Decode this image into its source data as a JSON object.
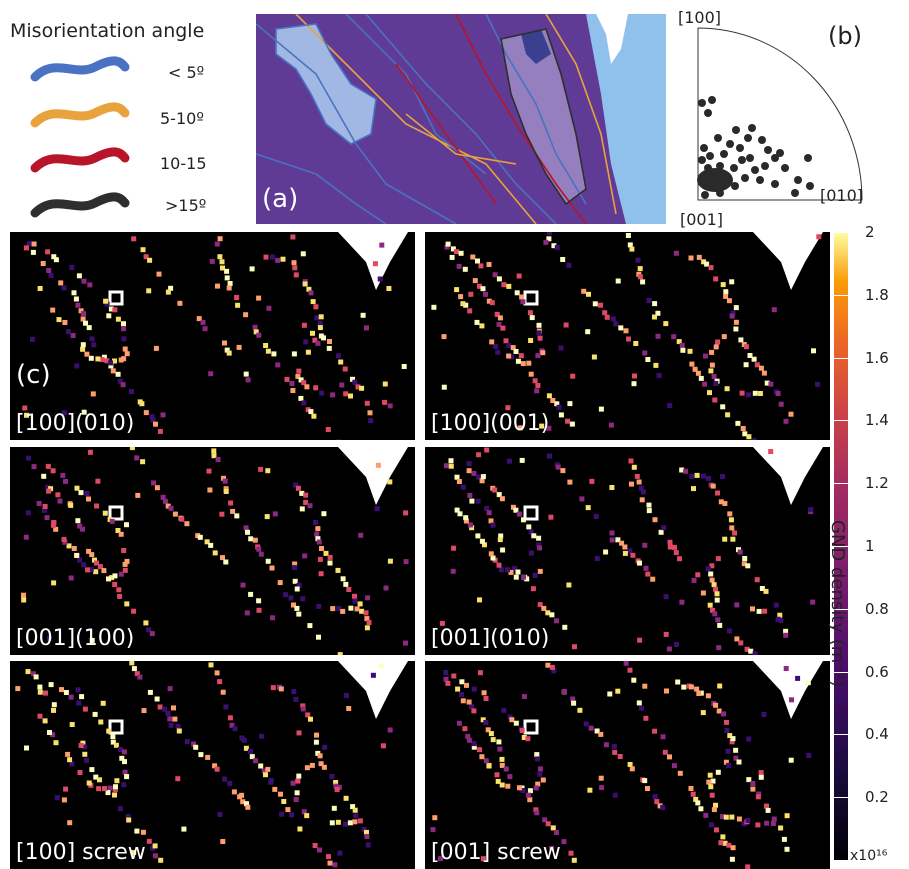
{
  "legend": {
    "title": "Misorientation angle",
    "items": [
      {
        "label": "< 5º",
        "color": "#4a72c2"
      },
      {
        "label": "5-10º",
        "color": "#e8a33c"
      },
      {
        "label": "10-15",
        "color": "#b8142a"
      },
      {
        "label": ">15º",
        "color": "#2e2e2e"
      }
    ]
  },
  "panel_a": {
    "label": "(a)"
  },
  "panel_b": {
    "label": "(b)",
    "axis_labels": {
      "top": "[100]",
      "right": "[010]",
      "origin": "[001]"
    }
  },
  "panel_c": {
    "label": "(c)",
    "maps": [
      {
        "caption": "[100](010)"
      },
      {
        "caption": "[100](001)"
      },
      {
        "caption": "[001](100)"
      },
      {
        "caption": "[001](010)"
      },
      {
        "caption": "[100] screw"
      },
      {
        "caption": "[001] screw"
      }
    ]
  },
  "colorbar": {
    "label": "GND density (m⁻²)",
    "multiplier": "x10¹⁶",
    "ticks": [
      "2",
      "1.8",
      "1.6",
      "1.4",
      "1.2",
      "1",
      "0.8",
      "0.6",
      "0.4",
      "0.2"
    ],
    "min": 0,
    "max": 2
  }
}
